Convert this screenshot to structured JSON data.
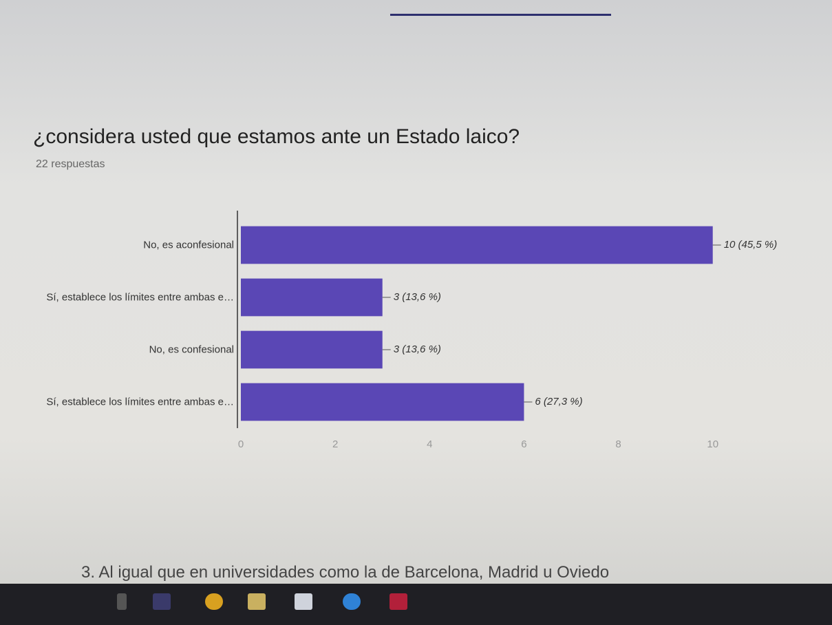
{
  "chart_data": {
    "type": "bar",
    "orientation": "horizontal",
    "title": "¿considera usted que estamos ante un Estado laico?",
    "subtitle": "22 respuestas",
    "categories": [
      "No, es aconfesional",
      "Sí, establece los límites entre ambas e…",
      "No, es confesional",
      "Sí, establece los límites entre ambas e…"
    ],
    "values": [
      10,
      3,
      3,
      6
    ],
    "value_labels": [
      "10 (45,5 %)",
      "3 (13,6 %)",
      "3 (13,6 %)",
      "6 (27,3 %)"
    ],
    "color": "#5a47b5",
    "xlim": [
      0,
      10.5
    ],
    "xticks": [
      0,
      2,
      4,
      6,
      8,
      10
    ],
    "grid": false
  },
  "footer_text": "3. Al igual que en universidades como la de Barcelona, Madrid u Oviedo"
}
